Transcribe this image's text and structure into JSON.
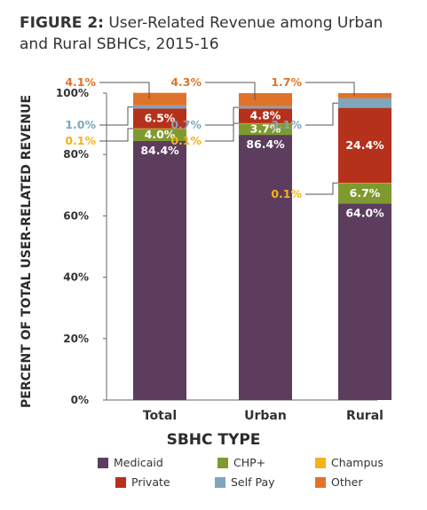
{
  "title": {
    "figure": "FIGURE 2:",
    "text": "User-Related Revenue among Urban and Rural SBHCs, 2015-16"
  },
  "chart_data": {
    "type": "bar",
    "stacked": true,
    "categories": [
      "Total",
      "Urban",
      "Rural"
    ],
    "xlabel": "SBHC TYPE",
    "ylabel": "PERCENT OF TOTAL USER-RELATED REVENUE",
    "ylim": [
      0,
      100
    ],
    "yticks": [
      "0%",
      "20%",
      "40%",
      "60%",
      "80%",
      "100%"
    ],
    "grid": false,
    "legend_position": "bottom",
    "series": [
      {
        "name": "Medicaid",
        "color": "#5c3d5e",
        "values": [
          84.4,
          86.4,
          64.0
        ],
        "labels": [
          "84.4%",
          "86.4%",
          "64.0%"
        ]
      },
      {
        "name": "CHP+",
        "color": "#7e9a2e",
        "values": [
          4.0,
          3.7,
          6.7
        ],
        "labels": [
          "4.0%",
          "3.7%",
          "6.7%"
        ]
      },
      {
        "name": "Champus",
        "color": "#f2b31c",
        "values": [
          0.1,
          0.1,
          0.1
        ],
        "labels": [
          "0.1%",
          "0.1%",
          "0.1%"
        ]
      },
      {
        "name": "Private",
        "color": "#b5311c",
        "values": [
          6.5,
          4.8,
          24.4
        ],
        "labels": [
          "6.5%",
          "4.8%",
          "24.4%"
        ]
      },
      {
        "name": "Self Pay",
        "color": "#7ea6bd",
        "values": [
          1.0,
          0.7,
          3.1
        ],
        "labels": [
          "1.0%",
          "0.7%",
          "3.1%"
        ]
      },
      {
        "name": "Other",
        "color": "#e0732a",
        "values": [
          4.1,
          4.3,
          1.7
        ],
        "labels": [
          "4.1%",
          "4.3%",
          "1.7%"
        ]
      }
    ]
  }
}
